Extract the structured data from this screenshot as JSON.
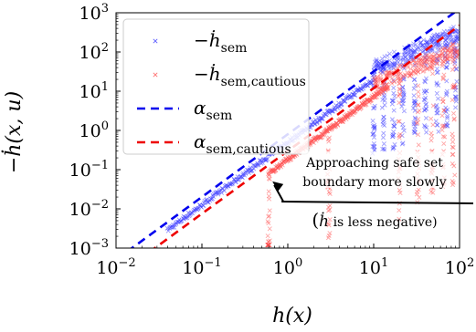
{
  "chart_data": {
    "type": "scatter",
    "xscale": "log",
    "yscale": "log",
    "xlim": [
      0.01,
      100
    ],
    "ylim": [
      0.001,
      1000
    ],
    "xlabel": "h(x)",
    "ylabel": "−ḣ(x, u)",
    "xticks": [
      {
        "base": "10",
        "exp": "−2",
        "value": 0.01
      },
      {
        "base": "10",
        "exp": "−1",
        "value": 0.1
      },
      {
        "base": "10",
        "exp": "0",
        "value": 1
      },
      {
        "base": "10",
        "exp": "1",
        "value": 10
      },
      {
        "base": "10",
        "exp": "2",
        "value": 100
      }
    ],
    "yticks": [
      {
        "base": "10",
        "exp": "−3",
        "value": 0.001
      },
      {
        "base": "10",
        "exp": "−2",
        "value": 0.01
      },
      {
        "base": "10",
        "exp": "−1",
        "value": 0.1
      },
      {
        "base": "10",
        "exp": "0",
        "value": 1
      },
      {
        "base": "10",
        "exp": "1",
        "value": 10
      },
      {
        "base": "10",
        "exp": "2",
        "value": 100
      },
      {
        "base": "10",
        "exp": "3",
        "value": 1000
      }
    ],
    "series": [
      {
        "name": "−ḣsem",
        "kind": "scatter",
        "color": "#3b3bff",
        "marker": "x",
        "trend": {
          "a": 0.5,
          "p": 1.6,
          "xmin": 0.04,
          "xmax": 10
        }
      },
      {
        "name": "−ḣsem,cautious",
        "kind": "scatter",
        "color": "#ff5050",
        "marker": "x",
        "trend": {
          "a": 0.18,
          "p": 1.6,
          "xmin": 0.6,
          "xmax": 15
        }
      },
      {
        "name": "αsem",
        "kind": "line",
        "style": "dashed",
        "color": "#0000ee",
        "a": 0.8,
        "p": 1.6
      },
      {
        "name": "αsem,cautious",
        "kind": "line",
        "style": "dashed",
        "color": "#ee0000",
        "a": 0.3,
        "p": 1.6
      }
    ],
    "legend": {
      "position": "upper-left",
      "entries": [
        {
          "base": "−ḣ",
          "sub": "sem",
          "color": "#3b3bff",
          "symbol": "x"
        },
        {
          "base": "−ḣ",
          "sub": "sem,cautious",
          "color": "#ff5050",
          "symbol": "x"
        },
        {
          "base": "α",
          "sub": "sem",
          "color": "#0000ee",
          "symbol": "dash"
        },
        {
          "base": "α",
          "sub": "sem,cautious",
          "color": "#ee0000",
          "symbol": "dash"
        }
      ]
    },
    "annotation": {
      "line1": "Approaching safe set",
      "line2": "boundary more slowly",
      "line3_pre": "(",
      "line3_italic": "ḣ",
      "line3_post": " is less negative)",
      "arrow_target": {
        "x": 0.6,
        "y": 0.045
      }
    }
  }
}
